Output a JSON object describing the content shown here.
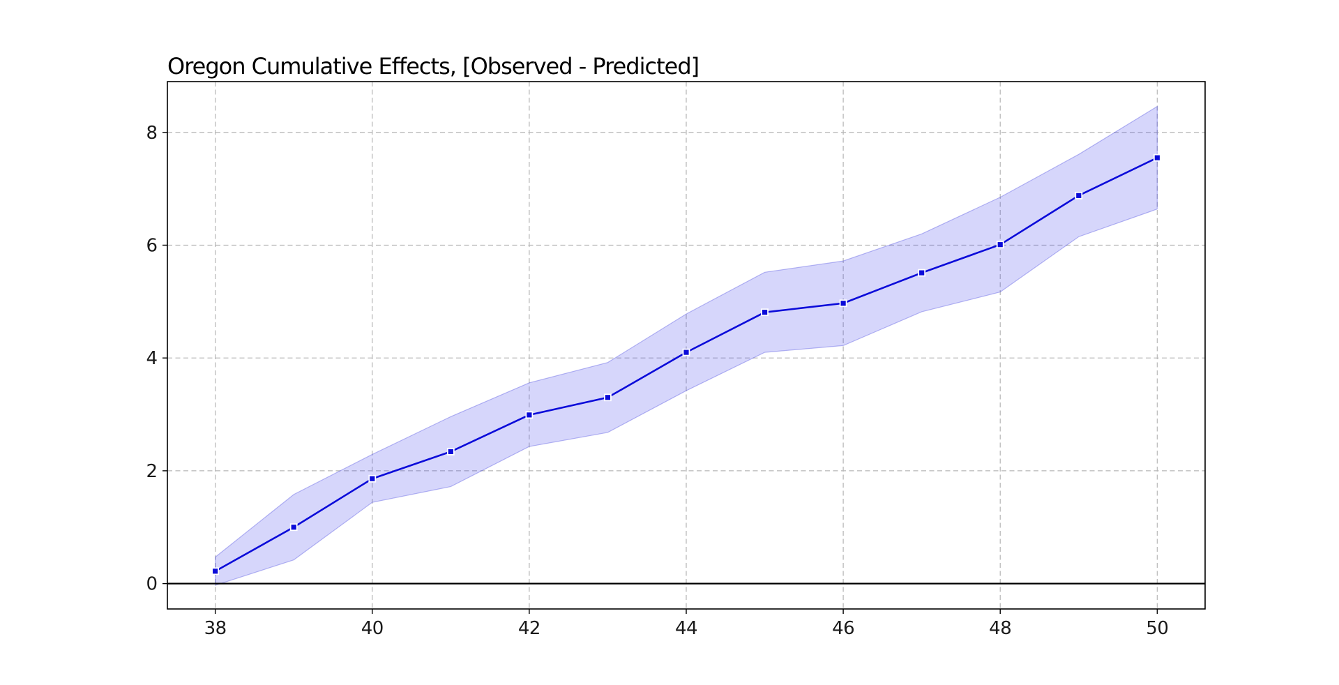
{
  "chart_data": {
    "type": "line",
    "title": "Oregon Cumulative Effects, [Observed - Predicted]",
    "xlabel": "",
    "ylabel": "",
    "x": [
      38,
      39,
      40,
      41,
      42,
      43,
      44,
      45,
      46,
      47,
      48,
      49,
      50
    ],
    "series": [
      {
        "name": "Observed - Predicted (cumulative effect)",
        "values": [
          0.22,
          1.0,
          1.86,
          2.34,
          2.99,
          3.3,
          4.1,
          4.81,
          4.97,
          5.51,
          6.01,
          6.88,
          7.55
        ]
      }
    ],
    "band": {
      "name": "confidence-interval",
      "lower": [
        -0.03,
        0.42,
        1.44,
        1.72,
        2.43,
        2.68,
        3.42,
        4.1,
        4.22,
        4.82,
        5.17,
        6.15,
        6.64
      ],
      "upper": [
        0.47,
        1.58,
        2.29,
        2.96,
        3.56,
        3.92,
        4.78,
        5.52,
        5.72,
        6.2,
        6.85,
        7.61,
        8.46
      ]
    },
    "reference_line_y": 0,
    "xticks": [
      38,
      40,
      42,
      44,
      46,
      48,
      50
    ],
    "yticks": [
      0,
      2,
      4,
      6,
      8
    ],
    "xlim": [
      37.39,
      50.61
    ],
    "ylim": [
      -0.45,
      8.9
    ],
    "grid": true,
    "grid_style": "dashed",
    "legend_position": "none",
    "marker": "square",
    "colors": {
      "line": "#0b0bd9",
      "marker_fill": "#0b0bd9",
      "marker_edge": "#ffffff",
      "band_fill": "rgba(70,70,235,0.22)",
      "band_edge": "rgba(60,60,220,0.35)",
      "grid": "#b5b5b5",
      "zero_line": "#000000",
      "spine": "#000000",
      "tick_label": "#1a1a1a"
    }
  }
}
